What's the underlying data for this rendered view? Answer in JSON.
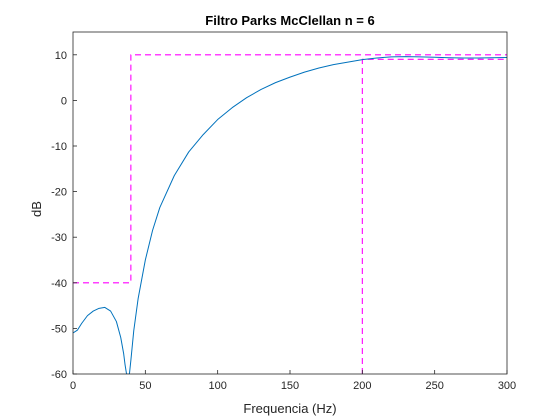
{
  "chart_data": {
    "type": "line",
    "title": "Filtro Parks McClellan n = 6",
    "xlabel": "Frequencia (Hz)",
    "ylabel": "dB",
    "xlim": [
      0,
      300
    ],
    "ylim": [
      -60,
      15
    ],
    "xticks": [
      0,
      50,
      100,
      150,
      200,
      250,
      300
    ],
    "yticks": [
      -60,
      -50,
      -40,
      -30,
      -20,
      -10,
      0,
      10
    ],
    "grid": false,
    "legend": false,
    "box": true,
    "colors": {
      "response": "#0072BD",
      "mask": "#FF00FF",
      "axes": "#262626"
    },
    "series": [
      {
        "style": "solid",
        "x": [
          0,
          3,
          6,
          10,
          14,
          18,
          22,
          26,
          30,
          33,
          35,
          36,
          37,
          37.5,
          38,
          39,
          40,
          42,
          45,
          50,
          55,
          60,
          70,
          80,
          90,
          100,
          110,
          120,
          130,
          140,
          150,
          160,
          170,
          180,
          190,
          200,
          210,
          220,
          230,
          240,
          250,
          260,
          270,
          280,
          290,
          300
        ],
        "y": [
          -51,
          -50.4,
          -48.9,
          -47.2,
          -46.2,
          -45.6,
          -45.4,
          -46.2,
          -48.5,
          -52,
          -55.5,
          -58,
          -60,
          -60,
          -60,
          -60,
          -57,
          -50.5,
          -43.5,
          -35,
          -28.5,
          -23.5,
          -16.5,
          -11.3,
          -7.5,
          -4.2,
          -1.6,
          0.6,
          2.4,
          3.9,
          5.1,
          6.2,
          7.1,
          7.85,
          8.4,
          8.95,
          9.3,
          9.55,
          9.6,
          9.55,
          9.45,
          9.35,
          9.3,
          9.3,
          9.35,
          9.4
        ]
      },
      {
        "style": "dashed",
        "x": [
          0,
          40,
          40,
          300
        ],
        "y": [
          -40,
          -40,
          10,
          10
        ]
      },
      {
        "style": "dashed",
        "x": [
          200,
          200,
          300
        ],
        "y": [
          -60,
          9,
          9
        ]
      }
    ]
  }
}
